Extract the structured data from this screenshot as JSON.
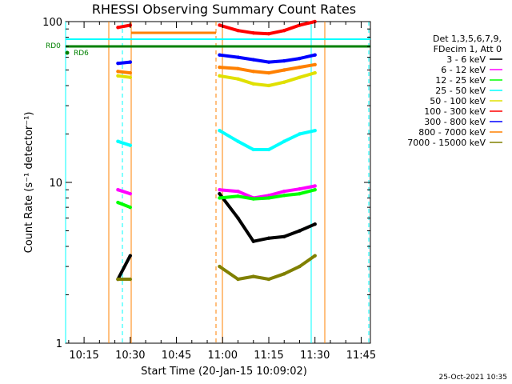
{
  "chart_data": {
    "type": "line",
    "title": "RHESSI Observing Summary Count Rates",
    "xlabel": "Start Time (20-Jan-15 10:09:02)",
    "ylabel": "Count Rate (s⁻¹ detector⁻¹)",
    "yscale": "log",
    "ylim": [
      1,
      100
    ],
    "xlim": [
      "10:09",
      "11:48"
    ],
    "x_ticks": [
      "10:15",
      "10:30",
      "10:45",
      "11:00",
      "11:15",
      "11:30",
      "11:45"
    ],
    "y_ticks": [
      "1",
      "10",
      "100"
    ],
    "legend_header": [
      "Det 1,3,5,6,7,9,",
      "FDecim 1, Att 0"
    ],
    "legend_position": "right",
    "series": [
      {
        "name": "3 - 6 keV",
        "color": "#000000",
        "x": [
          "10:26",
          "10:30",
          "10:59",
          "11:05",
          "11:10",
          "11:15",
          "11:20",
          "11:25",
          "11:30"
        ],
        "y": [
          2.5,
          3.5,
          8.5,
          6.0,
          4.3,
          4.5,
          4.6,
          5.0,
          5.5
        ]
      },
      {
        "name": "6 - 12 keV",
        "color": "#ff00ff",
        "x": [
          "10:26",
          "10:30",
          "10:59",
          "11:05",
          "11:10",
          "11:15",
          "11:20",
          "11:25",
          "11:30"
        ],
        "y": [
          9.0,
          8.5,
          9.0,
          8.8,
          8.0,
          8.3,
          8.8,
          9.1,
          9.5
        ]
      },
      {
        "name": "12 - 25 keV",
        "color": "#00ff00",
        "x": [
          "10:26",
          "10:30",
          "10:59",
          "11:05",
          "11:10",
          "11:15",
          "11:20",
          "11:25",
          "11:30"
        ],
        "y": [
          7.5,
          7.0,
          8.0,
          8.2,
          7.9,
          8.0,
          8.3,
          8.5,
          9.0
        ]
      },
      {
        "name": "25 - 50 keV",
        "color": "#00ffff",
        "x": [
          "10:26",
          "10:30",
          "10:59",
          "11:05",
          "11:10",
          "11:15",
          "11:20",
          "11:25",
          "11:30"
        ],
        "y": [
          18,
          17,
          21,
          18,
          16,
          16,
          18,
          20,
          21
        ]
      },
      {
        "name": "50 - 100 keV",
        "color": "#e0e000",
        "x": [
          "10:26",
          "10:30",
          "10:59",
          "11:05",
          "11:10",
          "11:15",
          "11:20",
          "11:25",
          "11:30"
        ],
        "y": [
          46,
          45,
          46,
          44,
          41,
          40,
          42,
          45,
          48
        ]
      },
      {
        "name": "100 - 300 keV",
        "color": "#ff0000",
        "x": [
          "10:26",
          "10:30",
          "10:59",
          "11:05",
          "11:10",
          "11:15",
          "11:20",
          "11:25",
          "11:30"
        ],
        "y": [
          92,
          95,
          95,
          88,
          85,
          84,
          88,
          95,
          100
        ]
      },
      {
        "name": "300 - 800 keV",
        "color": "#0000ff",
        "x": [
          "10:26",
          "10:30",
          "10:59",
          "11:05",
          "11:10",
          "11:15",
          "11:20",
          "11:25",
          "11:30"
        ],
        "y": [
          55,
          56,
          62,
          60,
          58,
          56,
          57,
          59,
          62
        ]
      },
      {
        "name": "800 - 7000 keV",
        "color": "#ff8000",
        "x": [
          "10:26",
          "10:30",
          "10:59",
          "11:05",
          "11:10",
          "11:15",
          "11:20",
          "11:25",
          "11:30"
        ],
        "y": [
          49,
          48,
          52,
          51,
          49,
          48,
          50,
          52,
          54
        ]
      },
      {
        "name": "7000 - 15000 keV",
        "color": "#808000",
        "x": [
          "10:26",
          "10:30",
          "10:59",
          "11:05",
          "11:10",
          "11:15",
          "11:20",
          "11:25",
          "11:30"
        ],
        "y": [
          2.5,
          2.5,
          3.0,
          2.5,
          2.6,
          2.5,
          2.7,
          3.0,
          3.5
        ]
      }
    ],
    "annotations": {
      "rd0_label": "RD0",
      "rd6_label": "RD6",
      "timestamp": "25-Oct-2021 10:35"
    }
  }
}
